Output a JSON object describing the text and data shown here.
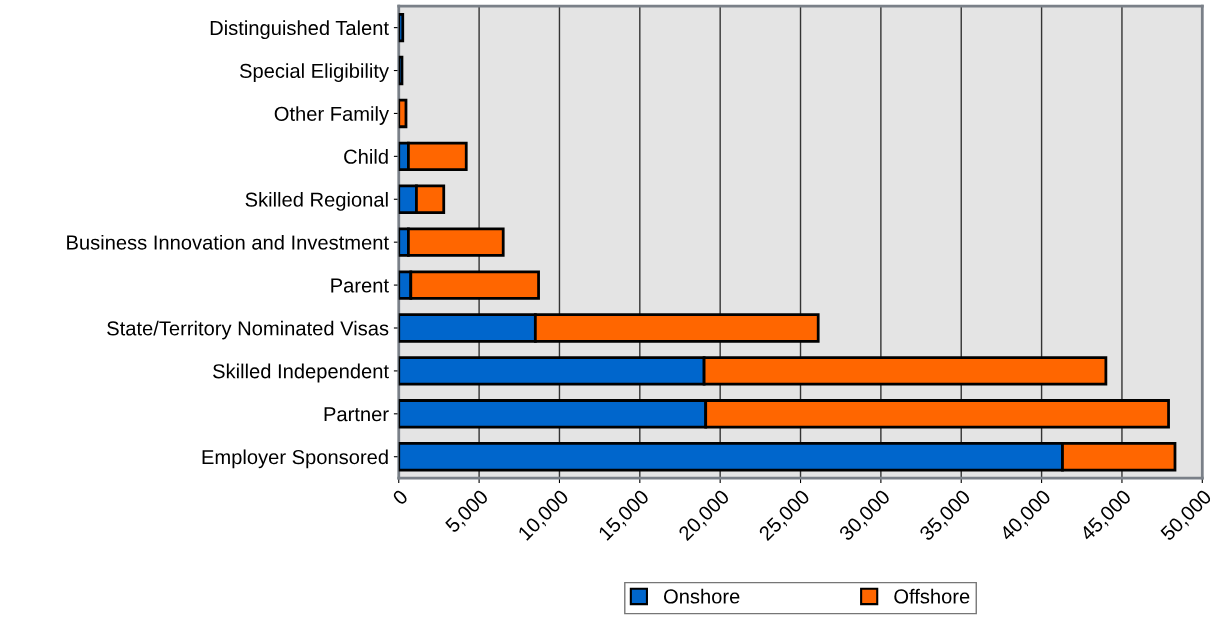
{
  "chart_data": {
    "type": "bar",
    "orientation": "horizontal",
    "stacked": true,
    "categories": [
      "Distinguished Talent",
      "Special Eligibility",
      "Other Family",
      "Child",
      "Skilled Regional",
      "Business Innovation and Investment",
      "Parent",
      "State/Territory Nominated Visas",
      "Skilled Independent",
      "Partner",
      "Employer Sponsored"
    ],
    "series": [
      {
        "name": "Onshore",
        "color": "#0066cc",
        "values": [
          250,
          200,
          null,
          600,
          1100,
          600,
          750,
          8500,
          19000,
          19100,
          41300
        ]
      },
      {
        "name": "Offshore",
        "color": "#ff6600",
        "values": [
          null,
          null,
          450,
          3600,
          1700,
          5900,
          7950,
          17600,
          25000,
          28800,
          7000
        ]
      }
    ],
    "xlim": [
      0,
      50000
    ],
    "xticks": [
      {
        "value": 0,
        "label": "0"
      },
      {
        "value": 5000,
        "label": "5,000"
      },
      {
        "value": 10000,
        "label": "10,000"
      },
      {
        "value": 15000,
        "label": "15,000"
      },
      {
        "value": 20000,
        "label": "20,000"
      },
      {
        "value": 25000,
        "label": "25,000"
      },
      {
        "value": 30000,
        "label": "30,000"
      },
      {
        "value": 35000,
        "label": "35,000"
      },
      {
        "value": 40000,
        "label": "40,000"
      },
      {
        "value": 45000,
        "label": "45,000"
      },
      {
        "value": 50000,
        "label": "50,000"
      }
    ],
    "grid": "x",
    "legend": "bottom"
  }
}
